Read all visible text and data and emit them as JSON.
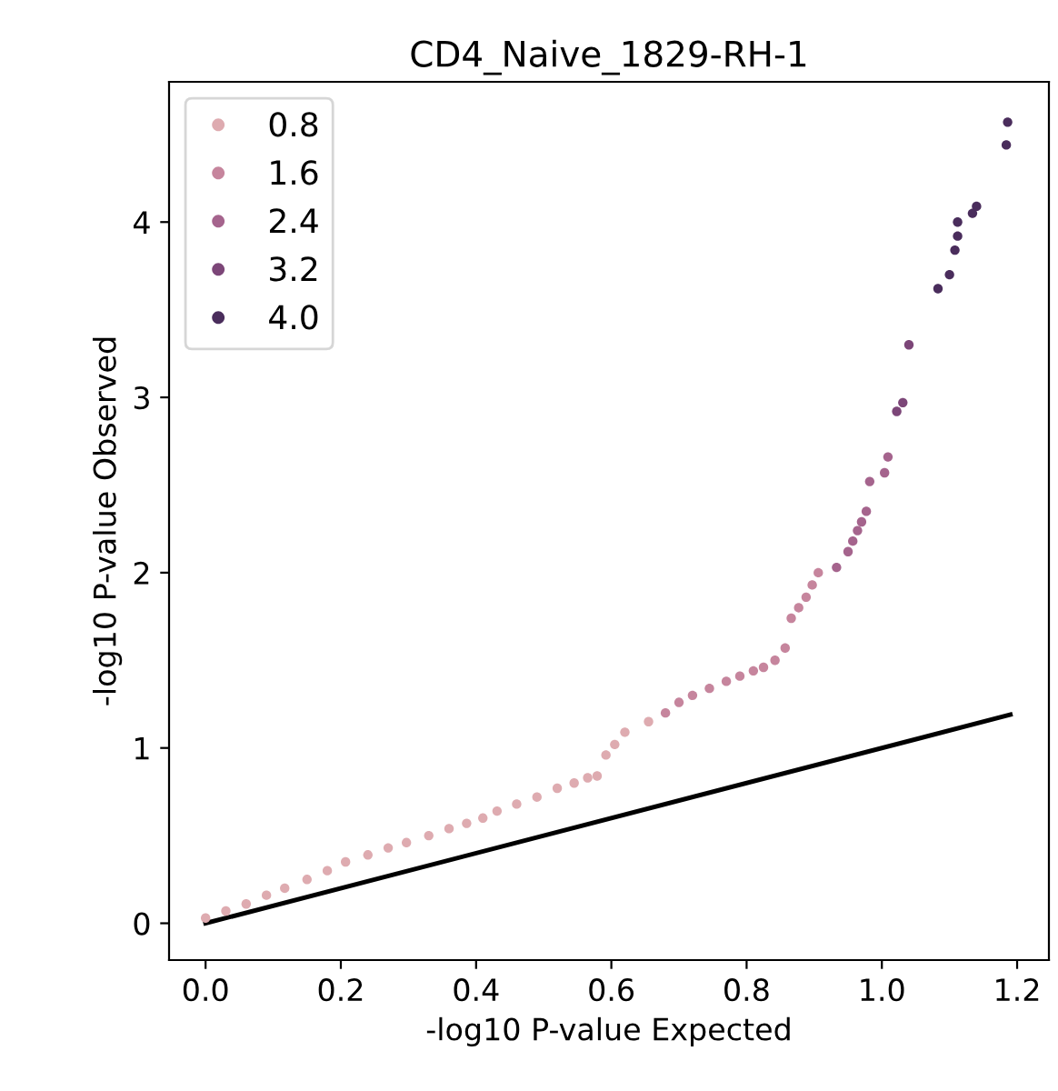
{
  "chart_data": {
    "type": "scatter",
    "title": "CD4_Naive_1829-RH-1",
    "xlabel": "-log10 P-value Expected",
    "ylabel": "-log10 P-value Observed",
    "xlim": [
      -0.054,
      1.247
    ],
    "ylim": [
      -0.21,
      4.8
    ],
    "xticks": [
      {
        "value": 0,
        "label": "0.0"
      },
      0.2,
      0.4,
      0.6,
      0.8,
      {
        "value": 1,
        "label": "1.0"
      },
      1.2
    ],
    "yticks": [
      0,
      1,
      2,
      3,
      4
    ],
    "series": [
      {
        "name": "0.8",
        "color": "#deabb0",
        "x": [
          0.0,
          0.03,
          0.06,
          0.09,
          0.117,
          0.15,
          0.18,
          0.207,
          0.24,
          0.27,
          0.297,
          0.33,
          0.36,
          0.386,
          0.41,
          0.431,
          0.46,
          0.49,
          0.52,
          0.545,
          0.565,
          0.579,
          0.592,
          0.605,
          0.62,
          0.655
        ],
        "values": [
          0.03,
          0.07,
          0.11,
          0.16,
          0.2,
          0.25,
          0.3,
          0.35,
          0.39,
          0.43,
          0.46,
          0.5,
          0.54,
          0.57,
          0.6,
          0.64,
          0.68,
          0.72,
          0.77,
          0.8,
          0.83,
          0.84,
          0.96,
          1.02,
          1.09,
          1.15
        ]
      },
      {
        "name": "1.6",
        "color": "#c6859d",
        "x": [
          0.68,
          0.7,
          0.72,
          0.745,
          0.77,
          0.79,
          0.81,
          0.825,
          0.842,
          0.857,
          0.866,
          0.877,
          0.888,
          0.897,
          0.906
        ],
        "values": [
          1.2,
          1.26,
          1.3,
          1.34,
          1.38,
          1.41,
          1.44,
          1.46,
          1.5,
          1.57,
          1.74,
          1.8,
          1.86,
          1.93,
          2.0
        ]
      },
      {
        "name": "2.4",
        "color": "#a5648d",
        "x": [
          0.933,
          0.95,
          0.957,
          0.964,
          0.97,
          0.977,
          0.982,
          1.004,
          1.009
        ],
        "values": [
          2.03,
          2.12,
          2.18,
          2.24,
          2.29,
          2.35,
          2.52,
          2.57,
          2.66
        ]
      },
      {
        "name": "3.2",
        "color": "#7c4678",
        "x": [
          1.022,
          1.031,
          1.04
        ],
        "values": [
          2.92,
          2.97,
          3.3
        ]
      },
      {
        "name": "4.0",
        "color": "#4a2d5c",
        "x": [
          1.083,
          1.1,
          1.108,
          1.112,
          1.112,
          1.134,
          1.14,
          1.184,
          1.186
        ],
        "values": [
          3.62,
          3.7,
          3.84,
          3.92,
          4.0,
          4.05,
          4.09,
          4.44,
          4.57
        ]
      },
      {
        "type": "line",
        "marker": "none",
        "color": "#000000",
        "x": [
          0.0,
          1.19
        ],
        "values": [
          0.0,
          1.19
        ]
      }
    ],
    "marker": "circle",
    "legend": "top left",
    "grid": false
  }
}
